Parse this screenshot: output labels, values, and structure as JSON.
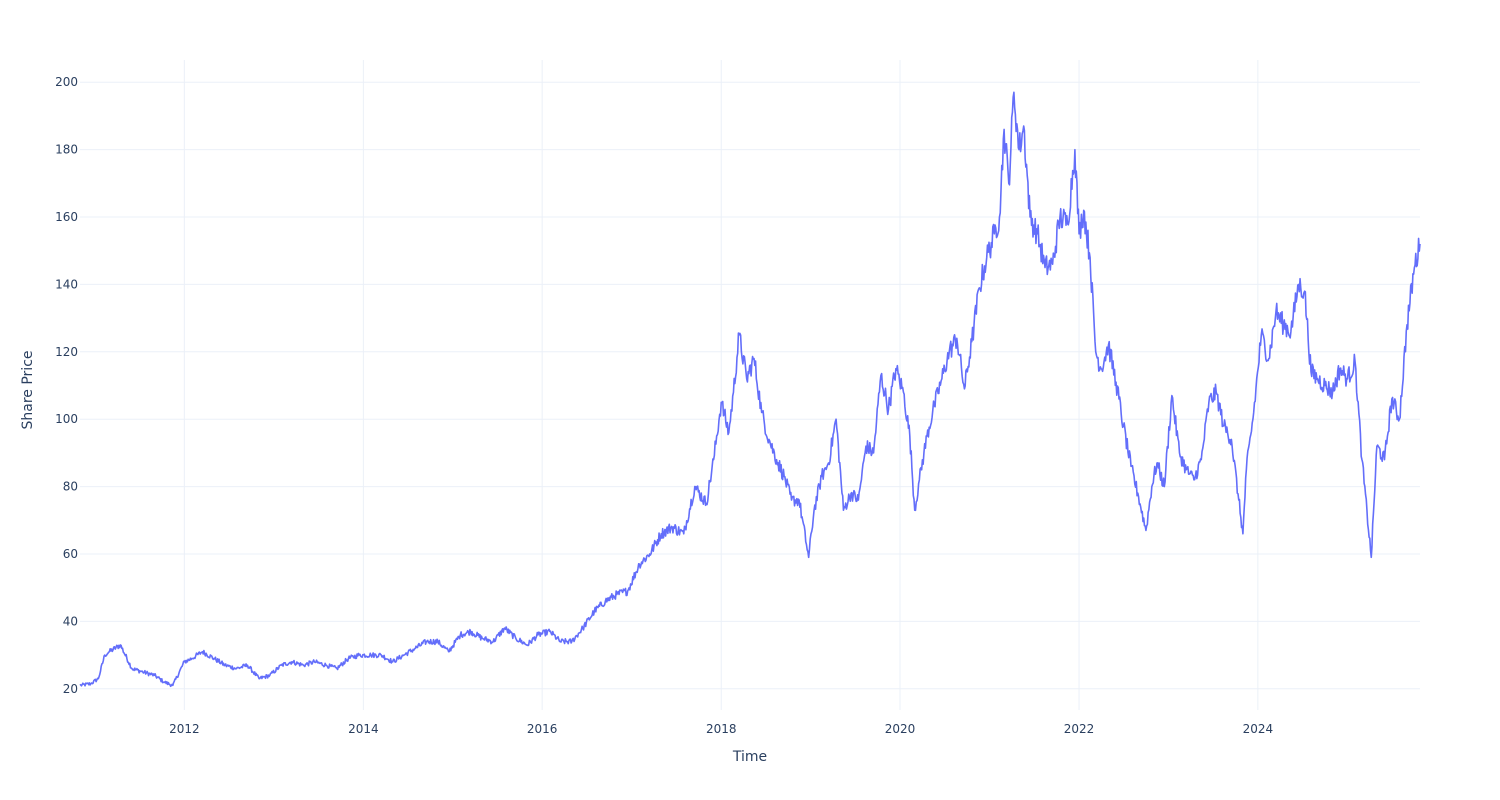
{
  "chart_data": {
    "type": "line",
    "xlabel": "Time",
    "ylabel": "Share Price",
    "xlim": [
      "2010-11-01",
      "2025-10-24"
    ],
    "ylim": [
      13.7,
      206.6
    ],
    "xticks": [
      "2012",
      "2014",
      "2016",
      "2018",
      "2020",
      "2022",
      "2024"
    ],
    "yticks": [
      "20",
      "40",
      "60",
      "80",
      "100",
      "120",
      "140",
      "160",
      "180",
      "200"
    ],
    "grid": true,
    "line_color": "#636efa",
    "series": [
      {
        "x": [
          "2010-11-01",
          "2010-12-15",
          "2011-01-15",
          "2011-02-10",
          "2011-03-01",
          "2011-04-15",
          "2011-06-01",
          "2011-07-15",
          "2011-09-01",
          "2011-10-10",
          "2011-11-15",
          "2012-01-01",
          "2012-02-01",
          "2012-03-15",
          "2012-05-01",
          "2012-06-15",
          "2012-08-01",
          "2012-09-15",
          "2012-11-01",
          "2012-12-15",
          "2013-02-01",
          "2013-03-15",
          "2013-05-01",
          "2013-06-15",
          "2013-08-01",
          "2013-09-15",
          "2013-11-01",
          "2013-12-15",
          "2014-02-01",
          "2014-03-15",
          "2014-05-01",
          "2014-06-15",
          "2014-08-01",
          "2014-09-15",
          "2014-11-01",
          "2014-12-15",
          "2015-02-01",
          "2015-03-15",
          "2015-05-01",
          "2015-06-15",
          "2015-08-01",
          "2015-09-15",
          "2015-11-01",
          "2015-12-15",
          "2016-02-01",
          "2016-03-15",
          "2016-05-01",
          "2016-06-15",
          "2016-08-01",
          "2016-09-15",
          "2016-11-01",
          "2016-12-15",
          "2017-02-01",
          "2017-03-15",
          "2017-05-01",
          "2017-06-15",
          "2017-08-01",
          "2017-09-15",
          "2017-11-01",
          "2017-12-01",
          "2018-01-01",
          "2018-02-01",
          "2018-02-20",
          "2018-03-15",
          "2018-04-15",
          "2018-05-15",
          "2018-06-15",
          "2018-07-15",
          "2018-08-15",
          "2018-09-15",
          "2018-10-15",
          "2018-11-15",
          "2018-12-24",
          "2019-01-15",
          "2019-02-15",
          "2019-03-15",
          "2019-04-15",
          "2019-05-15",
          "2019-06-15",
          "2019-07-15",
          "2019-08-15",
          "2019-09-15",
          "2019-10-15",
          "2019-11-15",
          "2019-12-15",
          "2020-01-15",
          "2020-02-10",
          "2020-03-01",
          "2020-03-20",
          "2020-04-20",
          "2020-05-20",
          "2020-06-20",
          "2020-07-20",
          "2020-08-20",
          "2020-09-20",
          "2020-10-20",
          "2020-11-20",
          "2020-12-20",
          "2021-01-20",
          "2021-02-10",
          "2021-03-01",
          "2021-03-20",
          "2021-04-10",
          "2021-05-01",
          "2021-05-20",
          "2021-06-15",
          "2021-07-15",
          "2021-08-15",
          "2021-09-15",
          "2021-10-15",
          "2021-11-15",
          "2021-12-15",
          "2022-01-01",
          "2022-01-20",
          "2022-02-15",
          "2022-03-10",
          "2022-04-01",
          "2022-05-01",
          "2022-06-01",
          "2022-07-01",
          "2022-08-01",
          "2022-09-01",
          "2022-10-01",
          "2022-10-25",
          "2022-11-15",
          "2022-12-15",
          "2023-01-15",
          "2023-02-15",
          "2023-03-15",
          "2023-04-15",
          "2023-05-15",
          "2023-06-15",
          "2023-07-15",
          "2023-08-15",
          "2023-09-15",
          "2023-10-15",
          "2023-11-01",
          "2023-11-15",
          "2023-12-15",
          "2024-01-15",
          "2024-02-15",
          "2024-03-15",
          "2024-04-15",
          "2024-05-15",
          "2024-06-15",
          "2024-07-10",
          "2024-08-05",
          "2024-09-01",
          "2024-10-01",
          "2024-11-01",
          "2024-12-01",
          "2025-01-01",
          "2025-02-01",
          "2025-03-01",
          "2025-04-08",
          "2025-05-01",
          "2025-06-01",
          "2025-07-01",
          "2025-08-01",
          "2025-09-01",
          "2025-10-01",
          "2025-10-24"
        ],
        "y": [
          21,
          21.5,
          23,
          30,
          31,
          33,
          26,
          25,
          24,
          22,
          21,
          28,
          29,
          31,
          29,
          27,
          26,
          27,
          23,
          24,
          27,
          28,
          27,
          28,
          27,
          26,
          29,
          30,
          30,
          30,
          28,
          30,
          32,
          34,
          34,
          31,
          36,
          37,
          35,
          34,
          38,
          35,
          33,
          36,
          37,
          34,
          34,
          38,
          43,
          46,
          48,
          49,
          57,
          60,
          66,
          68,
          66,
          80,
          75,
          88,
          105,
          96,
          108,
          125,
          112,
          118,
          102,
          94,
          88,
          83,
          76,
          76,
          59,
          73,
          83,
          87,
          100,
          73,
          78,
          76,
          92,
          90,
          113,
          103,
          115,
          108,
          95,
          73,
          82,
          95,
          104,
          112,
          120,
          124,
          109,
          123,
          139,
          148,
          155,
          160,
          186,
          170,
          197,
          180,
          187,
          160,
          155,
          145,
          146,
          160,
          158,
          180,
          155,
          162,
          148,
          120,
          115,
          122,
          111,
          98,
          86,
          77,
          67,
          80,
          87,
          80,
          107,
          90,
          85,
          82,
          88,
          105,
          108,
          98,
          94,
          76,
          66,
          85,
          102,
          125,
          118,
          132,
          128,
          126,
          140,
          138,
          114,
          112,
          110,
          108,
          115,
          112,
          117,
          88,
          59,
          92,
          88,
          106,
          100,
          128,
          145,
          152
        ]
      }
    ]
  }
}
